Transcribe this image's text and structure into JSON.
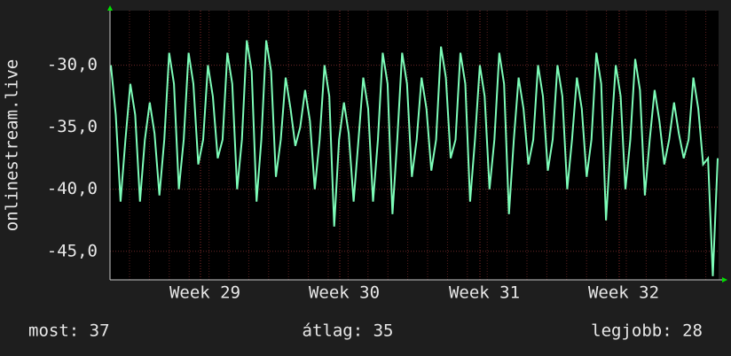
{
  "chart_data": {
    "type": "line",
    "y_label": "onlinestream.live",
    "ylim": [
      -47.3,
      -25.6
    ],
    "yticks": [
      {
        "value": -30,
        "label": "-30,0"
      },
      {
        "value": -35,
        "label": "-35,0"
      },
      {
        "value": -40,
        "label": "-40,0"
      },
      {
        "value": -45,
        "label": "-45,0"
      }
    ],
    "x_labels": [
      "Week 29",
      "Week 30",
      "Week 31",
      "Week 32"
    ],
    "grid": true,
    "series": [
      {
        "color": "#7dfcb8",
        "values": [
          -30,
          -34,
          -41,
          -36,
          -31.5,
          -34,
          -41,
          -36,
          -33,
          -35.5,
          -40.5,
          -36,
          -29,
          -31.5,
          -40,
          -36,
          -29,
          -31.5,
          -38,
          -36,
          -30,
          -32.5,
          -37.5,
          -36,
          -29,
          -31.5,
          -40,
          -36,
          -28,
          -30.5,
          -41,
          -36,
          -28,
          -30.5,
          -39,
          -36,
          -31,
          -33.5,
          -36.5,
          -35,
          -32,
          -34.5,
          -40,
          -36,
          -30,
          -32.5,
          -43,
          -36,
          -33,
          -35.5,
          -41,
          -36,
          -31,
          -33.5,
          -41,
          -36,
          -29,
          -31.5,
          -42,
          -36,
          -29,
          -31.5,
          -39,
          -36,
          -31,
          -33.5,
          -38.5,
          -36,
          -28.5,
          -31,
          -37.5,
          -36,
          -29,
          -31.5,
          -41,
          -36,
          -30,
          -32.5,
          -40,
          -36,
          -29,
          -31.5,
          -42,
          -36,
          -31,
          -33.5,
          -38,
          -36,
          -30,
          -32.5,
          -38.5,
          -36,
          -30,
          -32.5,
          -40,
          -36,
          -31,
          -33.5,
          -39,
          -36,
          -29,
          -31.5,
          -42.5,
          -36,
          -30,
          -32.5,
          -40,
          -36,
          -29.5,
          -32,
          -40.5,
          -36,
          -32,
          -34.5,
          -38,
          -36,
          -33,
          -35.5,
          -37.5,
          -36,
          -31,
          -33.5,
          -38,
          -37.5,
          -47,
          -37.5
        ]
      }
    ]
  },
  "footer": {
    "current": "most: 37",
    "average": "átlag: 35",
    "best": "legjobb: 28"
  }
}
